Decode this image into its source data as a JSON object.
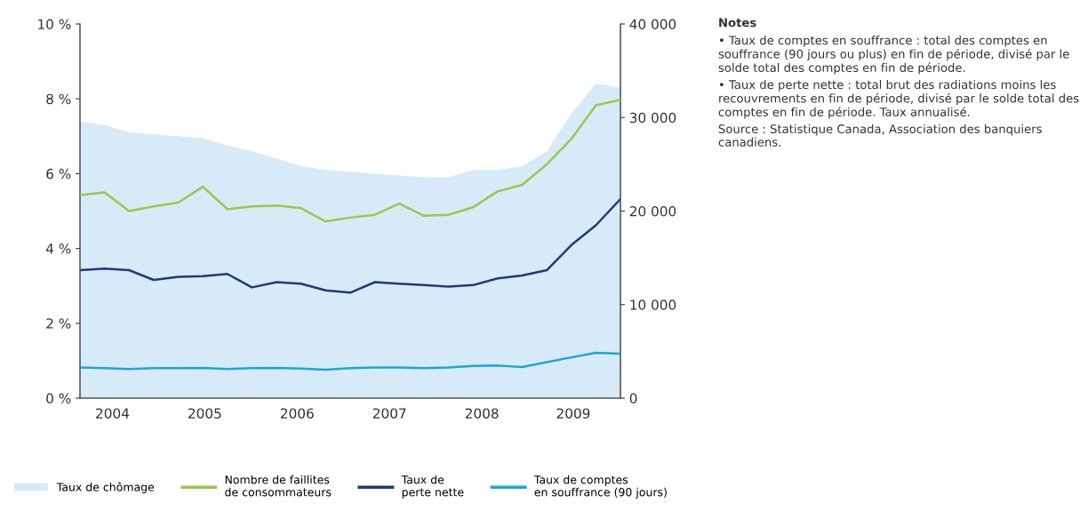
{
  "chart_data": {
    "type": "line",
    "x": [
      2004.0,
      2004.25,
      2004.5,
      2004.75,
      2005.0,
      2005.25,
      2005.5,
      2005.75,
      2006.0,
      2006.25,
      2006.5,
      2006.75,
      2007.0,
      2007.25,
      2007.5,
      2007.75,
      2008.0,
      2008.25,
      2008.5,
      2008.75,
      2009.0,
      2009.25,
      2009.5
    ],
    "series": [
      {
        "name": "Taux de chômage",
        "type": "area",
        "axis": "y",
        "color": "#d6ebf7",
        "values": [
          7.4,
          7.3,
          7.1,
          7.05,
          7.0,
          6.95,
          6.75,
          6.6,
          6.4,
          6.2,
          6.1,
          6.05,
          6.0,
          5.95,
          5.9,
          5.9,
          6.1,
          6.1,
          6.2,
          6.6,
          7.6,
          8.4,
          8.3
        ]
      },
      {
        "name": "Nombre de faillites\nde consommateurs",
        "axis": "y2",
        "color": "#9bc74a",
        "values": [
          21700,
          22000,
          20000,
          20500,
          20900,
          22600,
          20200,
          20500,
          20600,
          20300,
          18900,
          19300,
          19600,
          20800,
          19500,
          19600,
          20400,
          22100,
          22800,
          25000,
          27700,
          31300,
          31900
        ]
      },
      {
        "name": "Taux de\nperte nette",
        "axis": "y",
        "color": "#1f3a7a",
        "values": [
          3.42,
          3.46,
          3.42,
          3.16,
          3.24,
          3.26,
          3.32,
          2.96,
          3.1,
          3.06,
          2.88,
          2.82,
          3.1,
          3.06,
          3.02,
          2.98,
          3.02,
          3.2,
          3.28,
          3.42,
          4.09,
          4.62,
          5.32
        ]
      },
      {
        "name": "Taux de comptes\nen souffrance (90 jours)",
        "axis": "y",
        "color": "#1aa7d8",
        "values": [
          0.82,
          0.8,
          0.78,
          0.8,
          0.8,
          0.81,
          0.78,
          0.8,
          0.81,
          0.79,
          0.76,
          0.8,
          0.82,
          0.82,
          0.8,
          0.82,
          0.86,
          0.87,
          0.83,
          0.96,
          1.09,
          1.21,
          1.19
        ]
      }
    ],
    "xlim": [
      2004.0,
      2009.5
    ],
    "xticks": [
      {
        "value": 2004.33,
        "label": "2004"
      },
      {
        "value": 2005.27,
        "label": "2005"
      },
      {
        "value": 2006.21,
        "label": "2006"
      },
      {
        "value": 2007.15,
        "label": "2007"
      },
      {
        "value": 2008.09,
        "label": "2008"
      },
      {
        "value": 2009.02,
        "label": "2009"
      }
    ],
    "ylim": [
      0,
      10
    ],
    "yticks": [
      {
        "value": 0,
        "label": "0 %"
      },
      {
        "value": 2,
        "label": "2 %"
      },
      {
        "value": 4,
        "label": "4 %"
      },
      {
        "value": 6,
        "label": "6 %"
      },
      {
        "value": 8,
        "label": "8 %"
      },
      {
        "value": 10,
        "label": "10 %"
      }
    ],
    "y2lim": [
      0,
      40000
    ],
    "y2ticks": [
      {
        "value": 0,
        "label": "0"
      },
      {
        "value": 10000,
        "label": "10 000"
      },
      {
        "value": 20000,
        "label": "20 000"
      },
      {
        "value": 30000,
        "label": "30 000"
      },
      {
        "value": 40000,
        "label": "40 000"
      }
    ],
    "legend": "bottom",
    "grid": false,
    "annotations": [
      "Notes",
      "• Taux de comptes en souffrance : total des comptes en souffrance (90 jours ou plus) en fin de période, divisé par le solde total des comptes en fin de période.",
      "• Taux de perte nette : total brut des radiations moins les recouvrements en fin de période, divisé par le solde total des comptes en fin de période. Taux annualisé.",
      "Source : Statistique Canada, Association des banquiers canadiens."
    ]
  }
}
